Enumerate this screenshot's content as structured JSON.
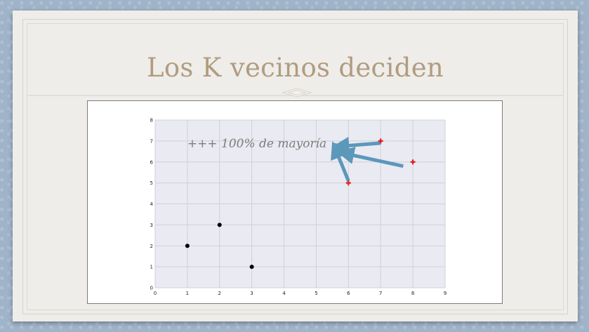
{
  "slide": {
    "title": "Los K vecinos deciden"
  },
  "chart_data": {
    "type": "scatter",
    "title": "",
    "xlabel": "",
    "ylabel": "",
    "xlim": [
      0,
      9
    ],
    "ylim": [
      0,
      8
    ],
    "xticks": [
      0,
      1,
      2,
      3,
      4,
      5,
      6,
      7,
      8,
      9
    ],
    "yticks": [
      0,
      1,
      2,
      3,
      4,
      5,
      6,
      7,
      8
    ],
    "grid": true,
    "series": [
      {
        "color": "#000000",
        "marker": "circle",
        "points": [
          [
            1,
            2
          ],
          [
            2,
            3
          ],
          [
            3,
            1
          ]
        ]
      },
      {
        "color": "#e41a1c",
        "marker": "plus",
        "points": [
          [
            6,
            5
          ],
          [
            7,
            7
          ],
          [
            8,
            6
          ]
        ]
      },
      {
        "color": "#5d9dc0",
        "marker": "circle",
        "points": [
          [
            5.6,
            6.8
          ]
        ]
      }
    ],
    "annotation": {
      "text": "+++ 100% de mayoría",
      "x": 1.0,
      "y": 6.7
    },
    "arrows": [
      {
        "from": [
          7.0,
          6.9
        ],
        "to": [
          5.75,
          6.75
        ]
      },
      {
        "from": [
          7.7,
          5.8
        ],
        "to": [
          5.9,
          6.4
        ]
      },
      {
        "from": [
          6.0,
          5.1
        ],
        "to": [
          5.6,
          6.6
        ]
      }
    ],
    "arrow_color": "#5b98ba",
    "plot_bg": "#eaeaf2",
    "grid_color": "#d0d0d8"
  }
}
